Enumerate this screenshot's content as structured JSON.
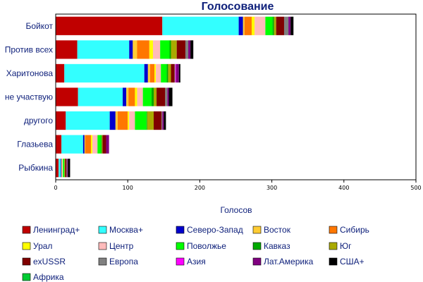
{
  "chart_data": {
    "type": "bar",
    "orientation": "horizontal",
    "stacked": true,
    "title": "Голосование",
    "xlabel": "Голосов",
    "ylabel": "",
    "xlim": [
      0,
      500
    ],
    "x_ticks": [
      0,
      100,
      200,
      300,
      400,
      500
    ],
    "grid": false,
    "legend_position": "bottom",
    "categories": [
      "Бойкот",
      "Против всех",
      "Харитонова",
      "не участвую",
      "другого",
      "Глазьева",
      "Рыбкина"
    ],
    "series": [
      {
        "name": "Ленинград+",
        "color": "#c00000",
        "values": [
          148,
          30,
          12,
          31,
          14,
          8,
          4
        ]
      },
      {
        "name": "Москва+",
        "color": "#33ffff",
        "values": [
          106,
          72,
          111,
          62,
          61,
          30,
          3
        ]
      },
      {
        "name": "Северо-Запад",
        "color": "#0000cc",
        "values": [
          6,
          5,
          5,
          5,
          8,
          2,
          1
        ]
      },
      {
        "name": "Восток",
        "color": "#ffcc33",
        "values": [
          2,
          6,
          3,
          3,
          3,
          1,
          1
        ]
      },
      {
        "name": "Сибирь",
        "color": "#ff7700",
        "values": [
          10,
          17,
          6,
          9,
          14,
          8,
          0
        ]
      },
      {
        "name": "Урал",
        "color": "#ffff00",
        "values": [
          4,
          5,
          2,
          3,
          2,
          2,
          0
        ]
      },
      {
        "name": "Центр",
        "color": "#ffbbbb",
        "values": [
          15,
          10,
          7,
          8,
          8,
          7,
          1
        ]
      },
      {
        "name": "Поволжье",
        "color": "#00ff00",
        "values": [
          10,
          13,
          8,
          12,
          16,
          5,
          2
        ]
      },
      {
        "name": "Кавказ",
        "color": "#00aa00",
        "values": [
          2,
          2,
          2,
          3,
          1,
          1,
          0
        ]
      },
      {
        "name": "Юг",
        "color": "#aaaa00",
        "values": [
          3,
          8,
          4,
          4,
          9,
          1,
          1
        ]
      },
      {
        "name": "exUSSR",
        "color": "#800000",
        "values": [
          11,
          12,
          5,
          12,
          11,
          5,
          2
        ]
      },
      {
        "name": "Европа",
        "color": "#808080",
        "values": [
          6,
          4,
          1,
          3,
          1,
          0,
          1
        ]
      },
      {
        "name": "Азия",
        "color": "#ff00ff",
        "values": [
          0,
          0,
          1,
          0,
          0,
          0,
          0
        ]
      },
      {
        "name": "Лат.Америка",
        "color": "#800080",
        "values": [
          3,
          3,
          4,
          2,
          2,
          4,
          1
        ]
      },
      {
        "name": "США+",
        "color": "#000000",
        "values": [
          4,
          4,
          2,
          5,
          3,
          0,
          3
        ]
      },
      {
        "name": "Африка",
        "color": "#00cc33",
        "values": [
          0,
          0,
          0,
          0,
          0,
          0,
          0
        ]
      }
    ]
  }
}
